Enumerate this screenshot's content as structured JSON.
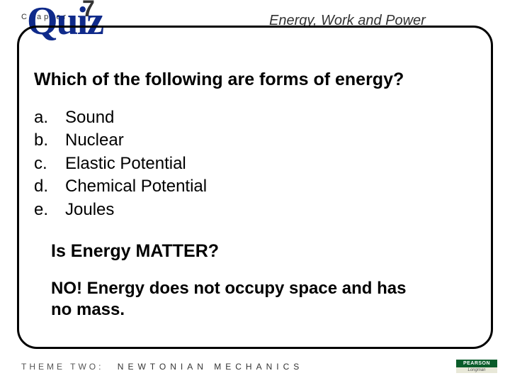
{
  "header": {
    "chapter_label": "Chapter",
    "chapter_number": "7",
    "quiz_word": "Quiz",
    "topic_title": "Energy, Work  and Power"
  },
  "question": "Which of the following are forms of energy?",
  "options": [
    {
      "letter": "a.",
      "text": "Sound"
    },
    {
      "letter": "b.",
      "text": "Nuclear"
    },
    {
      "letter": "c.",
      "text": "Elastic Potential"
    },
    {
      "letter": "d.",
      "text": "Chemical Potential"
    },
    {
      "letter": "e.",
      "text": "Joules"
    }
  ],
  "subquestion": "Is Energy MATTER?",
  "answer": "NO! Energy does not occupy space and has no mass.",
  "footer": {
    "prefix": "THEME TWO:",
    "main": "NEWTONIAN MECHANICS"
  },
  "publisher": {
    "top": "PEARSON",
    "bottom": "Longman"
  },
  "colors": {
    "quiz_color": "#0f2a8a",
    "frame_border": "#000000",
    "text": "#000000",
    "muted": "#333333",
    "badge_green": "#0a5c2a"
  }
}
